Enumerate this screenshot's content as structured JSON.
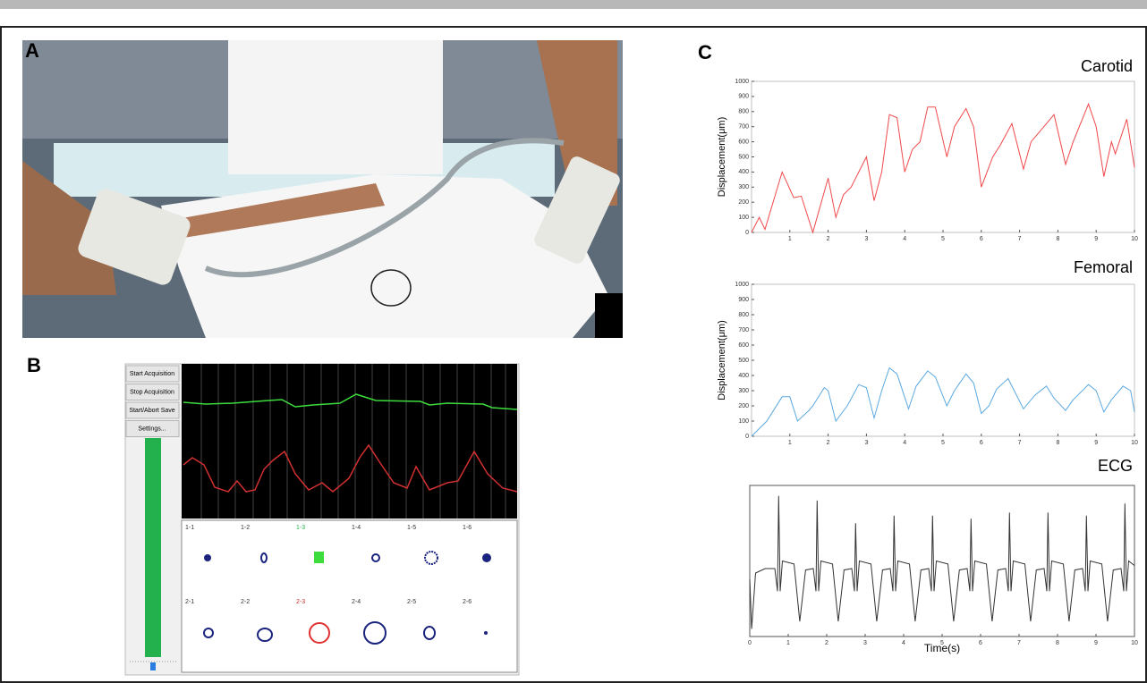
{
  "panels": {
    "a": "A",
    "b": "B",
    "c": "C"
  },
  "software": {
    "buttons": [
      "Start Acquisition",
      "Stop Acquisition",
      "Start/Abort Save",
      "Settings..."
    ],
    "channels": [
      [
        "1-1",
        "1-2",
        "1-3",
        "1-4",
        "1-5",
        "1-6"
      ],
      [
        "2-1",
        "2-2",
        "2-3",
        "2-4",
        "2-5",
        "2-6"
      ]
    ]
  },
  "chart_data": [
    {
      "type": "line",
      "title": "Carotid",
      "y_label": "Displacement(μm)",
      "color": "#f0484a",
      "xlim": [
        0,
        10
      ],
      "xticks": [
        1,
        2,
        3,
        4,
        5,
        6,
        7,
        8,
        9,
        10
      ],
      "ylim": [
        0,
        1000
      ],
      "yticks": [
        0,
        100,
        200,
        300,
        400,
        500,
        600,
        700,
        800,
        900,
        1000
      ],
      "x": [
        0,
        0.2,
        0.35,
        0.8,
        1.1,
        1.3,
        1.6,
        2.0,
        2.2,
        2.4,
        2.6,
        3.0,
        3.2,
        3.4,
        3.6,
        3.8,
        4.0,
        4.2,
        4.4,
        4.6,
        4.8,
        5.1,
        5.3,
        5.6,
        5.8,
        6.0,
        6.3,
        6.5,
        6.8,
        7.1,
        7.3,
        7.7,
        7.9,
        8.2,
        8.4,
        8.8,
        9.0,
        9.2,
        9.4,
        9.5,
        9.8,
        10
      ],
      "values": [
        0,
        100,
        20,
        400,
        230,
        240,
        0,
        360,
        100,
        250,
        300,
        500,
        210,
        400,
        780,
        760,
        400,
        550,
        600,
        830,
        830,
        500,
        700,
        820,
        700,
        300,
        500,
        580,
        720,
        420,
        600,
        720,
        780,
        450,
        600,
        850,
        700,
        370,
        600,
        520,
        750,
        430
      ]
    },
    {
      "type": "line",
      "title": "Femoral",
      "y_label": "Displacement(μm)",
      "color": "#5aa8e0",
      "xlim": [
        0,
        10
      ],
      "xticks": [
        1,
        2,
        3,
        4,
        5,
        6,
        7,
        8,
        9,
        10
      ],
      "ylim": [
        0,
        1000
      ],
      "yticks": [
        0,
        100,
        200,
        300,
        400,
        500,
        600,
        700,
        800,
        900,
        1000
      ],
      "x": [
        0,
        0.2,
        0.4,
        0.8,
        1.0,
        1.2,
        1.5,
        1.6,
        1.9,
        2.0,
        2.2,
        2.5,
        2.8,
        3.0,
        3.2,
        3.4,
        3.6,
        3.8,
        4.1,
        4.3,
        4.6,
        4.8,
        5.1,
        5.3,
        5.6,
        5.8,
        6.0,
        6.2,
        6.4,
        6.7,
        6.8,
        7.1,
        7.4,
        7.7,
        7.9,
        8.2,
        8.4,
        8.8,
        9.0,
        9.2,
        9.4,
        9.7,
        9.9,
        10
      ],
      "values": [
        0,
        50,
        100,
        260,
        260,
        100,
        170,
        200,
        320,
        300,
        100,
        200,
        340,
        320,
        120,
        300,
        450,
        410,
        180,
        330,
        430,
        390,
        200,
        300,
        410,
        350,
        150,
        200,
        310,
        380,
        330,
        180,
        270,
        330,
        250,
        170,
        240,
        340,
        300,
        160,
        240,
        330,
        300,
        160
      ]
    },
    {
      "type": "line",
      "title": "ECG",
      "x_label": "Time(s)",
      "color": "#333333",
      "xlim": [
        0,
        10
      ],
      "xticks": [
        0,
        1,
        2,
        3,
        4,
        5,
        6,
        7,
        8,
        9,
        10
      ],
      "ylim": [
        0,
        1
      ],
      "x": [
        0,
        0.05,
        0.15,
        0.4,
        0.65,
        0.72,
        0.75,
        0.79,
        0.85,
        1.15,
        1.3,
        1.45,
        1.65,
        1.72,
        1.75,
        1.79,
        1.85,
        2.15,
        2.3,
        2.45,
        2.65,
        2.72,
        2.75,
        2.79,
        2.85,
        3.15,
        3.3,
        3.45,
        3.65,
        3.72,
        3.75,
        3.79,
        3.85,
        4.15,
        4.3,
        4.45,
        4.65,
        4.72,
        4.75,
        4.79,
        4.85,
        5.15,
        5.3,
        5.45,
        5.65,
        5.72,
        5.75,
        5.79,
        5.85,
        6.15,
        6.3,
        6.45,
        6.65,
        6.72,
        6.75,
        6.79,
        6.85,
        7.15,
        7.3,
        7.45,
        7.65,
        7.72,
        7.75,
        7.79,
        7.85,
        8.15,
        8.3,
        8.45,
        8.65,
        8.72,
        8.75,
        8.79,
        8.85,
        9.15,
        9.3,
        9.45,
        9.65,
        9.72,
        9.75,
        9.79,
        9.85,
        10
      ],
      "values": [
        0.38,
        0.05,
        0.42,
        0.45,
        0.45,
        0.3,
        0.93,
        0.3,
        0.5,
        0.48,
        0.1,
        0.44,
        0.45,
        0.3,
        0.9,
        0.3,
        0.5,
        0.48,
        0.1,
        0.44,
        0.45,
        0.3,
        0.75,
        0.3,
        0.5,
        0.48,
        0.1,
        0.44,
        0.45,
        0.3,
        0.8,
        0.3,
        0.5,
        0.48,
        0.1,
        0.44,
        0.45,
        0.3,
        0.8,
        0.3,
        0.5,
        0.48,
        0.1,
        0.44,
        0.45,
        0.3,
        0.78,
        0.3,
        0.5,
        0.48,
        0.1,
        0.44,
        0.45,
        0.3,
        0.82,
        0.3,
        0.5,
        0.48,
        0.1,
        0.44,
        0.45,
        0.3,
        0.82,
        0.3,
        0.5,
        0.48,
        0.1,
        0.44,
        0.45,
        0.3,
        0.8,
        0.3,
        0.5,
        0.48,
        0.1,
        0.44,
        0.45,
        0.3,
        0.88,
        0.3,
        0.5,
        0.47
      ]
    }
  ]
}
